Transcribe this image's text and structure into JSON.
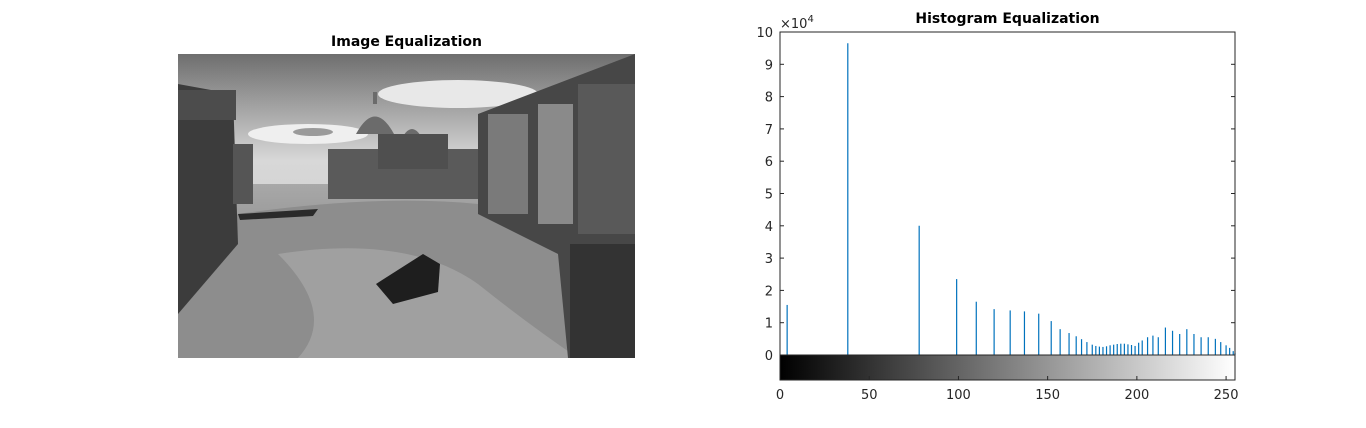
{
  "left_panel": {
    "title": "Image Equalization"
  },
  "chart_data": {
    "type": "bar",
    "title": "Histogram Equalization",
    "xlabel": "",
    "ylabel": "",
    "xlim": [
      0,
      255
    ],
    "ylim": [
      0,
      100000
    ],
    "y_exponent_label": "×10",
    "y_exponent_power": "4",
    "xticks": [
      0,
      50,
      100,
      150,
      200,
      250
    ],
    "yticks": [
      0,
      10000,
      20000,
      30000,
      40000,
      50000,
      60000,
      70000,
      80000,
      90000,
      100000
    ],
    "ytick_labels": [
      "0",
      "1",
      "2",
      "3",
      "4",
      "5",
      "6",
      "7",
      "8",
      "9",
      "10"
    ],
    "bar_color": "#0072bd",
    "grid": false,
    "colorbar": "grayscale 0-255 below x-axis",
    "bins": [
      4,
      38,
      78,
      99,
      110,
      120,
      129,
      137,
      145,
      152,
      157,
      162,
      166,
      169,
      172,
      175,
      177,
      179,
      181,
      183,
      185,
      187,
      189,
      191,
      193,
      195,
      197,
      199,
      201,
      203,
      206,
      209,
      212,
      216,
      220,
      224,
      228,
      232,
      236,
      240,
      244,
      247,
      250,
      252,
      254,
      255
    ],
    "values": [
      15500,
      96500,
      40000,
      23500,
      16500,
      14200,
      13800,
      13500,
      12800,
      10500,
      8000,
      6800,
      5800,
      4900,
      4000,
      3200,
      2800,
      2600,
      2500,
      2700,
      3000,
      3200,
      3400,
      3500,
      3500,
      3300,
      3100,
      2800,
      3800,
      4500,
      5500,
      6000,
      5500,
      8500,
      7500,
      6500,
      8000,
      6500,
      5500,
      5500,
      5000,
      4000,
      3000,
      2200,
      1200,
      600
    ]
  }
}
